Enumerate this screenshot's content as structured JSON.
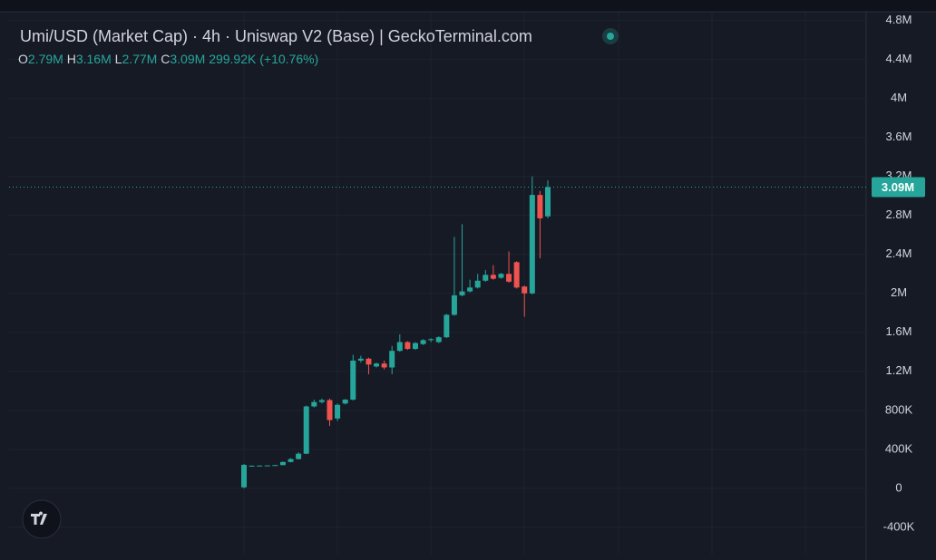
{
  "chart_data": {
    "type": "candlestick",
    "title": "Umi/USD (Market Cap) · 4h · Uniswap V2 (Base) | GeckoTerminal.com",
    "header": {
      "o_label": "O",
      "o": "2.79M",
      "h_label": "H",
      "h": "3.16M",
      "l_label": "L",
      "l": "2.77M",
      "c_label": "C",
      "c": "3.09M",
      "change": "299.92K (+10.76%)"
    },
    "up_color": "#26a69a",
    "down_color": "#ef5350",
    "open": [
      10000,
      230000,
      232000,
      233000,
      235000,
      238000,
      270000,
      300000,
      355000,
      840000,
      885000,
      905000,
      716000,
      870000,
      910000,
      1310000,
      1330000,
      1250000,
      1280000,
      1240000,
      1410000,
      1500000,
      1430000,
      1480000,
      1520000,
      1500000,
      1550000,
      1780000,
      1980000,
      2020000,
      2060000,
      2130000,
      2190000,
      2160000,
      2200000,
      2320000,
      2070000,
      2000000,
      3010000,
      2790000
    ],
    "high": [
      250000,
      235000,
      235000,
      236000,
      240000,
      275000,
      310000,
      370000,
      850000,
      910000,
      920000,
      920000,
      870000,
      915000,
      1370000,
      1360000,
      1340000,
      1290000,
      1310000,
      1460000,
      1580000,
      1510000,
      1500000,
      1530000,
      1540000,
      1560000,
      1790000,
      2580000,
      2710000,
      2140000,
      2200000,
      2240000,
      2290000,
      2210000,
      2430000,
      2330000,
      2080000,
      3200000,
      3050000,
      3160000
    ],
    "low": [
      0,
      225000,
      228000,
      230000,
      232000,
      235000,
      265000,
      295000,
      350000,
      830000,
      870000,
      640000,
      690000,
      860000,
      900000,
      1290000,
      1170000,
      1240000,
      1220000,
      1170000,
      1400000,
      1420000,
      1420000,
      1470000,
      1500000,
      1490000,
      1540000,
      1770000,
      1970000,
      2010000,
      2050000,
      2120000,
      2140000,
      2150000,
      2110000,
      2050000,
      1760000,
      1990000,
      2360000,
      2770000
    ],
    "close": [
      240000,
      232000,
      233000,
      235000,
      238000,
      270000,
      300000,
      355000,
      840000,
      885000,
      905000,
      700000,
      856000,
      910000,
      1310000,
      1330000,
      1270000,
      1280000,
      1240000,
      1410000,
      1500000,
      1430000,
      1490000,
      1520000,
      1530000,
      1550000,
      1780000,
      1980000,
      2020000,
      2060000,
      2130000,
      2190000,
      2150000,
      2200000,
      2120000,
      2060000,
      2000000,
      3010000,
      2770000,
      3090000
    ],
    "last_price": {
      "value": 3090000,
      "label": "3.09M"
    },
    "ylim": [
      -680000,
      4880000
    ],
    "yticks": [
      {
        "value": -400000,
        "label": "-400K"
      },
      0,
      {
        "value": 400000,
        "label": "400K"
      },
      {
        "value": 800000,
        "label": "800K"
      },
      {
        "value": 1200000,
        "label": "1.2M"
      },
      {
        "value": 1600000,
        "label": "1.6M"
      },
      {
        "value": 2000000,
        "label": "2M"
      },
      {
        "value": 2400000,
        "label": "2.4M"
      },
      {
        "value": 2800000,
        "label": "2.8M"
      },
      {
        "value": 3200000,
        "label": "3.2M"
      },
      {
        "value": 3600000,
        "label": "3.6M"
      },
      {
        "value": 4000000,
        "label": "4M"
      },
      {
        "value": 4400000,
        "label": "4.4M"
      },
      {
        "value": 4800000,
        "label": "4.8M"
      }
    ],
    "grid": true
  }
}
